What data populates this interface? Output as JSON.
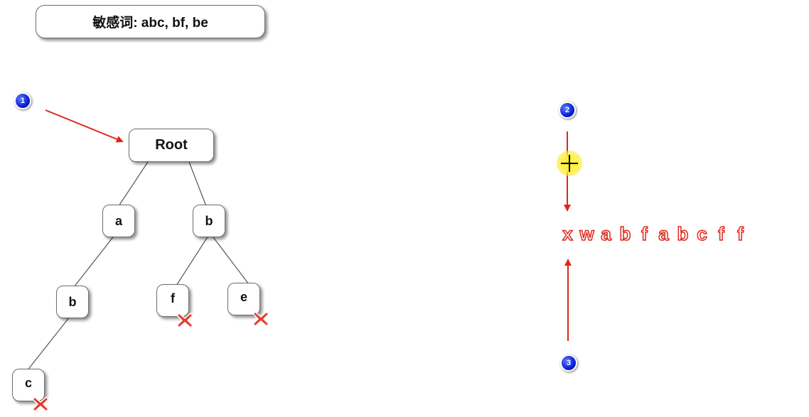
{
  "title": "敏感词: abc, bf, be",
  "tree": {
    "root": "Root",
    "a": "a",
    "b": "b",
    "ab": "b",
    "abc": "c",
    "bf": "f",
    "be": "e"
  },
  "badges": {
    "one": "1",
    "two": "2",
    "three": "3"
  },
  "sequence": [
    "x",
    "w",
    "a",
    "b",
    "f",
    "a",
    "b",
    "c",
    "f",
    "f"
  ],
  "colors": {
    "arrow": "#e0261a",
    "badge": "#0a1fd6",
    "xmark": "#e04030"
  }
}
